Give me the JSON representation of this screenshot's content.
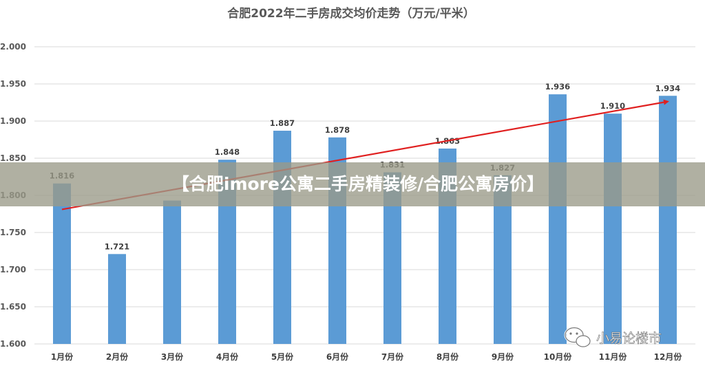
{
  "chart_data": {
    "type": "bar",
    "title": "合肥2022年二手房成交均价走势（万元/平米）",
    "categories": [
      "1月份",
      "2月份",
      "3月份",
      "4月份",
      "5月份",
      "6月份",
      "7月份",
      "8月份",
      "9月份",
      "10月份",
      "11月份",
      "12月份"
    ],
    "values": [
      1.816,
      1.721,
      1.793,
      1.848,
      1.887,
      1.878,
      1.831,
      1.863,
      1.827,
      1.936,
      1.91,
      1.934
    ],
    "data_labels": [
      "1.816",
      "1.721",
      "",
      "1.848",
      "1.887",
      "1.878",
      "1.831",
      "1.863",
      "1.827",
      "1.936",
      "1.910",
      "1.934"
    ],
    "ylim": [
      1.6,
      2.0
    ],
    "yticks": [
      "1.600",
      "1.650",
      "1.700",
      "1.750",
      "1.800",
      "1.850",
      "1.900",
      "1.950",
      "2.000"
    ],
    "grid": true,
    "bar_color": "#5b9bd5",
    "trendline": {
      "type": "linear",
      "color": "#e02020",
      "arrow": true
    }
  },
  "banner": {
    "text": "【合肥imore公寓二手房精装修/合肥公寓房价】"
  },
  "watermark": {
    "text": "小易论楼市",
    "icon": "wechat-icon"
  }
}
